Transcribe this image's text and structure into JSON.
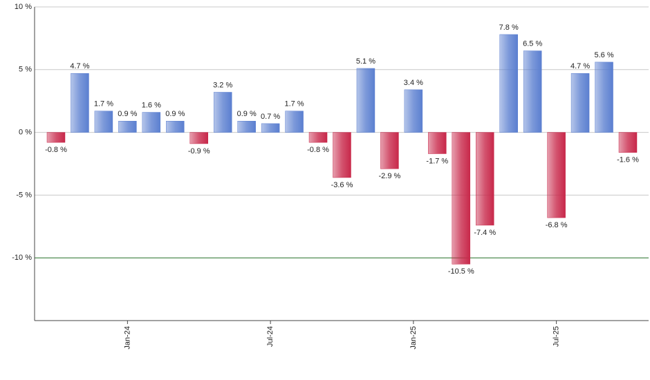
{
  "chart_data": {
    "type": "bar",
    "categories": [
      null,
      null,
      null,
      "Jan-24",
      null,
      null,
      null,
      null,
      null,
      "Jul-24",
      null,
      null,
      null,
      null,
      null,
      "Jan-25",
      null,
      null,
      null,
      null,
      null,
      "Jul-25",
      null,
      null,
      null
    ],
    "values": [
      -0.8,
      4.7,
      1.7,
      0.9,
      1.6,
      0.9,
      -0.9,
      3.2,
      0.9,
      0.7,
      1.7,
      -0.8,
      -3.6,
      5.1,
      -2.9,
      3.4,
      -1.7,
      -10.5,
      -7.4,
      7.8,
      6.5,
      -6.8,
      4.7,
      5.6,
      -1.6
    ],
    "value_labels": [
      "-0.8 %",
      "4.7 %",
      "1.7 %",
      "0.9 %",
      "1.6 %",
      "0.9 %",
      "-0.9 %",
      "3.2 %",
      "0.9 %",
      "0.7 %",
      "1.7 %",
      "-0.8 %",
      "-3.6 %",
      "5.1 %",
      "-2.9 %",
      "3.4 %",
      "-1.7 %",
      "-10.5 %",
      "-7.4 %",
      "7.8 %",
      "6.5 %",
      "-6.8 %",
      "4.7 %",
      "5.6 %",
      "-1.6 %"
    ],
    "positive_color": "#5b7fd0",
    "negative_color": "#c8284a",
    "ylim": [
      -15,
      10
    ],
    "yticks": [
      {
        "value": -10,
        "label": "-10 %"
      },
      {
        "value": -5,
        "label": "-5 %"
      },
      {
        "value": 0,
        "label": "0 %"
      },
      {
        "value": 5,
        "label": "5 %"
      },
      {
        "value": 10,
        "label": "10 %"
      }
    ],
    "grid": true,
    "reference_line": {
      "value": -10,
      "color": "#2e7d32"
    }
  }
}
